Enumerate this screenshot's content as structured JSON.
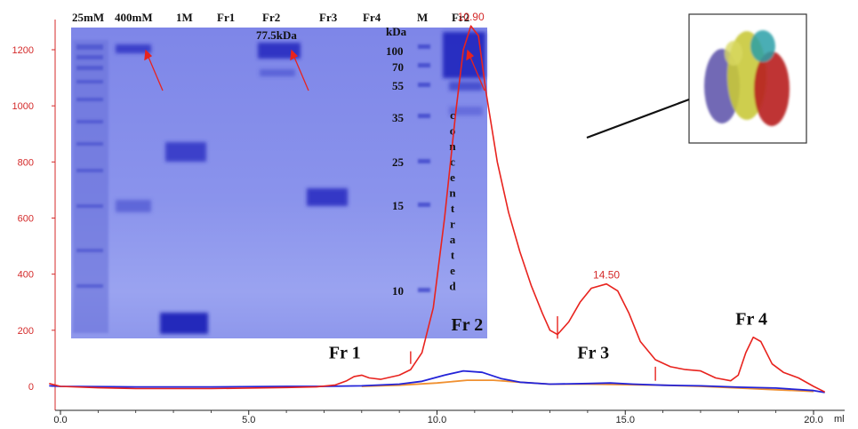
{
  "chart_data": {
    "type": "line",
    "xlabel": "ml",
    "ylabel": "",
    "xlim": [
      -0.2,
      20.6
    ],
    "ylim": [
      -60,
      1300
    ],
    "x_ticks": [
      {
        "value": 0,
        "label": "0.0"
      },
      {
        "value": 5,
        "label": "5.0"
      },
      {
        "value": 10,
        "label": "10.0"
      },
      {
        "value": 15,
        "label": "15.0"
      },
      {
        "value": 20,
        "label": "20.0"
      }
    ],
    "y_ticks": [
      {
        "value": 0,
        "label": "0"
      },
      {
        "value": 200,
        "label": "200"
      },
      {
        "value": 400,
        "label": "400"
      },
      {
        "value": 600,
        "label": "600"
      },
      {
        "value": 800,
        "label": "800"
      },
      {
        "value": 1000,
        "label": "1000"
      },
      {
        "value": 1200,
        "label": "1200"
      }
    ],
    "series": [
      {
        "color": "#e8231e",
        "points": [
          [
            -0.3,
            10
          ],
          [
            0,
            0
          ],
          [
            1,
            -5
          ],
          [
            2,
            -8
          ],
          [
            3,
            -8
          ],
          [
            4,
            -8
          ],
          [
            5,
            -6
          ],
          [
            6,
            -4
          ],
          [
            6.8,
            -2
          ],
          [
            7.3,
            5
          ],
          [
            7.6,
            20
          ],
          [
            7.8,
            35
          ],
          [
            8.0,
            40
          ],
          [
            8.2,
            30
          ],
          [
            8.5,
            25
          ],
          [
            9.0,
            40
          ],
          [
            9.3,
            60
          ],
          [
            9.6,
            120
          ],
          [
            9.9,
            280
          ],
          [
            10.2,
            600
          ],
          [
            10.5,
            980
          ],
          [
            10.7,
            1200
          ],
          [
            10.9,
            1285
          ],
          [
            11.1,
            1250
          ],
          [
            11.3,
            1050
          ],
          [
            11.6,
            800
          ],
          [
            11.9,
            620
          ],
          [
            12.2,
            480
          ],
          [
            12.5,
            360
          ],
          [
            12.8,
            260
          ],
          [
            13.0,
            200
          ],
          [
            13.2,
            185
          ],
          [
            13.5,
            230
          ],
          [
            13.8,
            300
          ],
          [
            14.1,
            350
          ],
          [
            14.5,
            365
          ],
          [
            14.8,
            340
          ],
          [
            15.1,
            260
          ],
          [
            15.4,
            160
          ],
          [
            15.8,
            95
          ],
          [
            16.2,
            70
          ],
          [
            16.6,
            60
          ],
          [
            17.0,
            55
          ],
          [
            17.4,
            30
          ],
          [
            17.8,
            20
          ],
          [
            18.0,
            40
          ],
          [
            18.2,
            120
          ],
          [
            18.4,
            175
          ],
          [
            18.6,
            160
          ],
          [
            18.9,
            80
          ],
          [
            19.2,
            50
          ],
          [
            19.6,
            30
          ],
          [
            20.0,
            0
          ],
          [
            20.3,
            -20
          ]
        ]
      },
      {
        "color": "#2323d8",
        "points": [
          [
            -0.3,
            2
          ],
          [
            0,
            0
          ],
          [
            2,
            -2
          ],
          [
            4,
            -2
          ],
          [
            6,
            0
          ],
          [
            7,
            0
          ],
          [
            8,
            2
          ],
          [
            9,
            8
          ],
          [
            9.6,
            18
          ],
          [
            10.2,
            40
          ],
          [
            10.7,
            55
          ],
          [
            11.2,
            50
          ],
          [
            11.7,
            28
          ],
          [
            12.2,
            15
          ],
          [
            13,
            8
          ],
          [
            14,
            10
          ],
          [
            14.6,
            12
          ],
          [
            15.2,
            8
          ],
          [
            16,
            4
          ],
          [
            17,
            2
          ],
          [
            18,
            -3
          ],
          [
            19,
            -6
          ],
          [
            20,
            -15
          ],
          [
            20.3,
            -22
          ]
        ]
      },
      {
        "color": "#f09030",
        "points": [
          [
            8,
            0
          ],
          [
            9,
            4
          ],
          [
            10,
            12
          ],
          [
            10.8,
            22
          ],
          [
            11.5,
            22
          ],
          [
            12.2,
            15
          ],
          [
            13,
            8
          ],
          [
            14,
            8
          ],
          [
            15,
            6
          ],
          [
            16,
            4
          ],
          [
            17,
            0
          ],
          [
            18,
            -6
          ],
          [
            19,
            -12
          ],
          [
            20,
            -18
          ]
        ]
      }
    ],
    "peak_labels": [
      {
        "x": 10.9,
        "y": 1285,
        "text": "10.90"
      },
      {
        "x": 14.5,
        "y": 365,
        "text": "14.50"
      }
    ],
    "fraction_labels": [
      {
        "text": "Fr 1",
        "x": 7.55,
        "y": 100
      },
      {
        "text": "Fr 2",
        "x": 10.8,
        "y": 200
      },
      {
        "text": "Fr 3",
        "x": 14.15,
        "y": 100
      },
      {
        "text": "Fr 4",
        "x": 18.35,
        "y": 220
      }
    ],
    "fraction_markers": [
      {
        "x": 9.3,
        "y0": 80,
        "y1": 125
      },
      {
        "x": 13.2,
        "y0": 170,
        "y1": 250
      },
      {
        "x": 15.8,
        "y0": 20,
        "y1": 70
      }
    ]
  },
  "gel": {
    "lanes": [
      "25mM",
      "400mM",
      "1M",
      "Fr1",
      "Fr2",
      "Fr3",
      "Fr4",
      "M",
      "Fr2"
    ],
    "band_annotation": "77.5kDa",
    "marker_unit": "kDa",
    "marker_sizes": [
      "100",
      "70",
      "55",
      "35",
      "25",
      "15",
      "10"
    ],
    "vertical_text": [
      "c",
      "o",
      "n",
      "c",
      "e",
      "n",
      "t",
      "r",
      "a",
      "t",
      "e",
      "d"
    ]
  },
  "colors": {
    "red": "#e8231e",
    "blue": "#2323d8",
    "orange": "#f09030",
    "gel_bg": "#7d86e6",
    "gel_band": "#2e34c4"
  }
}
